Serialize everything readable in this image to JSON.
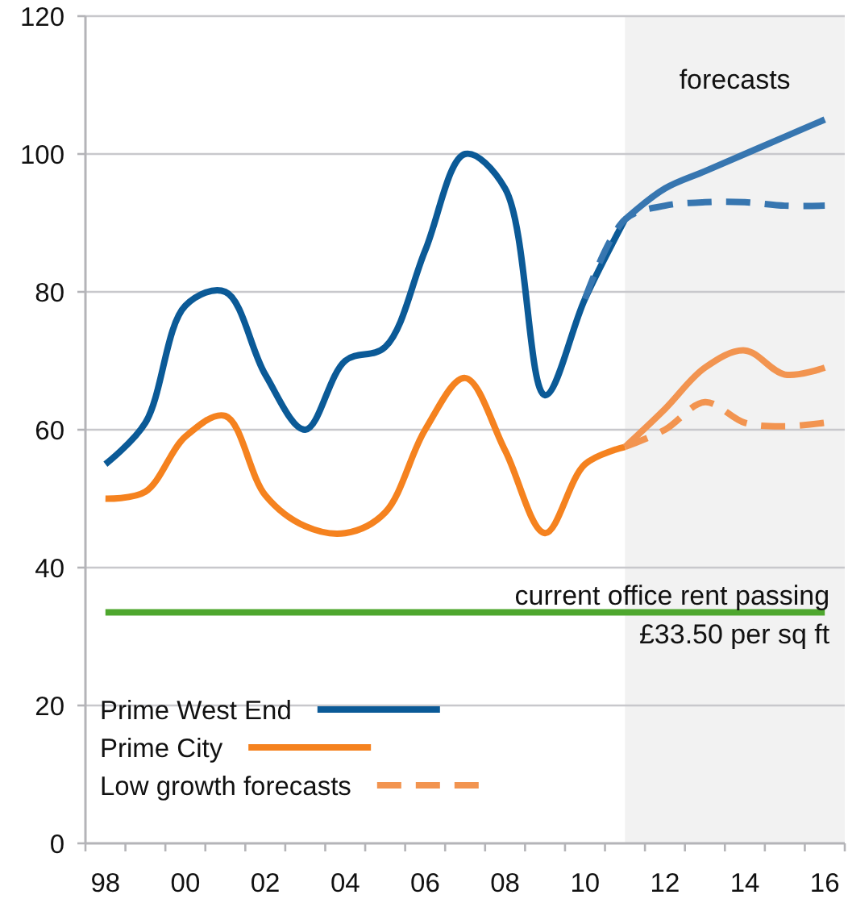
{
  "chart_data": {
    "type": "line",
    "xlim": [
      1997.5,
      2016.5
    ],
    "xticks": [
      {
        "value": 1997.5,
        "label": null
      },
      {
        "value": 1998,
        "label": "98"
      },
      {
        "value": 1998.5,
        "label": null
      },
      {
        "value": 1999.5,
        "label": null
      },
      {
        "value": 2000,
        "label": "00"
      },
      {
        "value": 2000.5,
        "label": null
      },
      {
        "value": 2001.5,
        "label": null
      },
      {
        "value": 2002,
        "label": "02"
      },
      {
        "value": 2002.5,
        "label": null
      },
      {
        "value": 2003.5,
        "label": null
      },
      {
        "value": 2004,
        "label": "04"
      },
      {
        "value": 2004.5,
        "label": null
      },
      {
        "value": 2005.5,
        "label": null
      },
      {
        "value": 2006,
        "label": "06"
      },
      {
        "value": 2006.5,
        "label": null
      },
      {
        "value": 2007.5,
        "label": null
      },
      {
        "value": 2008,
        "label": "08"
      },
      {
        "value": 2008.5,
        "label": null
      },
      {
        "value": 2009.5,
        "label": null
      },
      {
        "value": 2010,
        "label": "10"
      },
      {
        "value": 2010.5,
        "label": null
      },
      {
        "value": 2011.5,
        "label": null
      },
      {
        "value": 2012,
        "label": "12"
      },
      {
        "value": 2012.5,
        "label": null
      },
      {
        "value": 2013.5,
        "label": null
      },
      {
        "value": 2014,
        "label": "14"
      },
      {
        "value": 2014.5,
        "label": null
      },
      {
        "value": 2015.5,
        "label": null
      },
      {
        "value": 2016,
        "label": "16"
      },
      {
        "value": 2016.5,
        "label": null
      }
    ],
    "ylim": [
      0,
      120
    ],
    "yticks": [
      0,
      20,
      40,
      60,
      80,
      100,
      120
    ],
    "grid": "y",
    "legend": "bottom left",
    "series": [
      {
        "name": "Prime West End",
        "color": "#0b5a97",
        "line_style": "solid",
        "x": [
          1998,
          1999,
          2000,
          2001,
          2002,
          2003,
          2004,
          2005,
          2006,
          2007,
          2008,
          2009,
          2010,
          2011
        ],
        "values": [
          55,
          61,
          78,
          80,
          68,
          60,
          70,
          72,
          86,
          100,
          95,
          65,
          79,
          90.5
        ]
      },
      {
        "name": "Prime City",
        "color": "#f5821f",
        "line_style": "solid",
        "x": [
          1998,
          1999,
          2000,
          2001,
          2002,
          2003,
          2004,
          2005,
          2006,
          2007,
          2008,
          2009,
          2010,
          2011
        ],
        "values": [
          50,
          51,
          59,
          62,
          50.5,
          46,
          45,
          48,
          60,
          67.5,
          57,
          45,
          55,
          57.5
        ]
      },
      {
        "name": "Low growth forecasts",
        "color": "#f29450",
        "line_style": "dashed",
        "x": [
          2011,
          2012,
          2013,
          2014,
          2015,
          2016
        ],
        "values": [
          57.5,
          60,
          64,
          61,
          60.5,
          61
        ]
      },
      {
        "color": "#3776b0",
        "line_style": "solid",
        "x": [
          2011,
          2012,
          2013,
          2014,
          2015,
          2016
        ],
        "values": [
          90.5,
          95,
          97.5,
          100,
          102.5,
          105
        ]
      },
      {
        "color": "#3776b0",
        "line_style": "dashed",
        "x": [
          2010,
          2011,
          2012,
          2013,
          2014,
          2015,
          2016
        ],
        "values": [
          79,
          90.5,
          92.5,
          93,
          93,
          92.5,
          92.5
        ]
      },
      {
        "color": "#f29450",
        "line_style": "solid",
        "x": [
          2011,
          2012,
          2013,
          2014,
          2015,
          2016
        ],
        "values": [
          57.5,
          63,
          69,
          71.5,
          68,
          69
        ]
      }
    ],
    "ref_lines": [
      {
        "axis": "y",
        "value": 33.5,
        "label": "current office rent passing\n£33.50 per sq ft",
        "color": "#4ea72e"
      }
    ],
    "bands": [
      {
        "axis": "x",
        "from": 2011,
        "to": 2016.5,
        "label": "forecasts",
        "color": "#f2f2f2"
      }
    ]
  }
}
